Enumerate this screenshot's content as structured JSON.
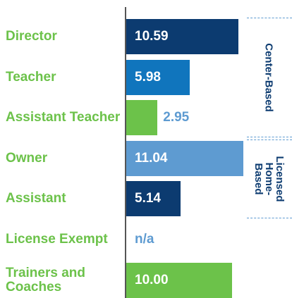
{
  "chart_data": {
    "type": "bar",
    "orientation": "horizontal",
    "categories": [
      "Director",
      "Teacher",
      "Assistant Teacher",
      "Owner",
      "Assistant",
      "License Exempt",
      "Trainers and Coaches"
    ],
    "values": [
      10.59,
      5.98,
      2.95,
      11.04,
      5.14,
      null,
      10
    ],
    "value_labels": [
      "10.59",
      "5.98",
      "2.95",
      "11.04",
      "5.14",
      "n/a",
      "10.00"
    ],
    "colors": [
      "#0c3b70",
      "#1075bd",
      "#6cc24a",
      "#5e9bd1",
      "#0c3b70",
      null,
      "#6cc24a"
    ],
    "xlim": [
      0,
      12
    ],
    "groups": [
      {
        "label": "Center-Based"
      },
      {
        "label": "Licensed Home-Based"
      }
    ]
  }
}
